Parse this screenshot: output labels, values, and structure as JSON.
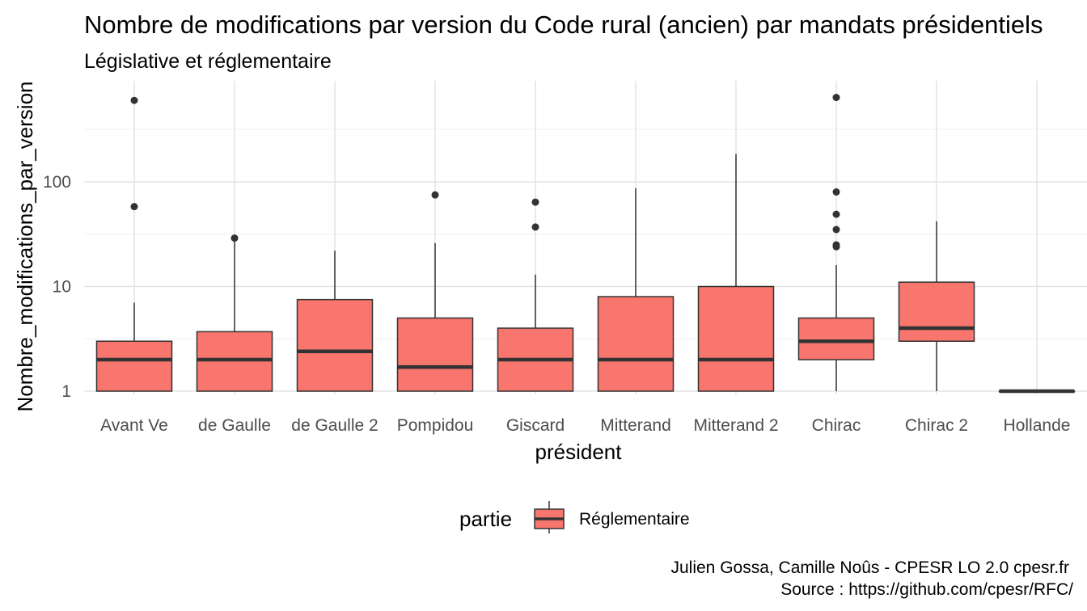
{
  "chart_data": {
    "type": "boxplot",
    "title": "Nombre de modifications par version du Code rural (ancien) par mandats présidentiels",
    "subtitle": "Législative et réglementaire",
    "xlabel": "président",
    "ylabel": "Nombre_modifications_par_version",
    "y_scale": "log10",
    "ylim": [
      0.9,
      750
    ],
    "y_ticks": [
      1,
      10,
      100
    ],
    "y_tick_labels": [
      "1",
      "10",
      "100"
    ],
    "grid": true,
    "legend": {
      "title": "partie",
      "position": "bottom",
      "entries": [
        "Réglementaire"
      ]
    },
    "fill_color": "#F8766D",
    "categories": [
      "Avant Ve",
      "de Gaulle",
      "de Gaulle 2",
      "Pompidou",
      "Giscard",
      "Mitterand",
      "Mitterand 2",
      "Chirac",
      "Chirac 2",
      "Hollande"
    ],
    "series": [
      {
        "name": "Réglementaire",
        "boxes": [
          {
            "category": "Avant Ve",
            "min": 1,
            "q1": 1,
            "median": 2,
            "q3": 3,
            "max": 7,
            "outliers": [
              58,
              600
            ]
          },
          {
            "category": "de Gaulle",
            "min": 1,
            "q1": 1,
            "median": 2,
            "q3": 3.7,
            "max": 28,
            "outliers": [
              29
            ]
          },
          {
            "category": "de Gaulle 2",
            "min": 1,
            "q1": 1,
            "median": 2.4,
            "q3": 7.5,
            "max": 22,
            "outliers": []
          },
          {
            "category": "Pompidou",
            "min": 1,
            "q1": 1,
            "median": 1.7,
            "q3": 5,
            "max": 26,
            "outliers": [
              75
            ]
          },
          {
            "category": "Giscard",
            "min": 1,
            "q1": 1,
            "median": 2,
            "q3": 4,
            "max": 13,
            "outliers": [
              37,
              64
            ]
          },
          {
            "category": "Mitterand",
            "min": 1,
            "q1": 1,
            "median": 2,
            "q3": 8,
            "max": 87,
            "outliers": []
          },
          {
            "category": "Mitterand 2",
            "min": 1,
            "q1": 1,
            "median": 2,
            "q3": 10,
            "max": 185,
            "outliers": []
          },
          {
            "category": "Chirac",
            "min": 1,
            "q1": 2,
            "median": 3,
            "q3": 5,
            "max": 16,
            "outliers": [
              24,
              25,
              35,
              49,
              80,
              640
            ]
          },
          {
            "category": "Chirac 2",
            "min": 1,
            "q1": 3,
            "median": 4,
            "q3": 11,
            "max": 42,
            "outliers": []
          },
          {
            "category": "Hollande",
            "min": 1,
            "q1": 1,
            "median": 1,
            "q3": 1,
            "max": 1,
            "outliers": []
          }
        ]
      }
    ],
    "caption": [
      "Julien Gossa, Camille Noûs - CPESR LO 2.0 cpesr.fr",
      "Source : https://github.com/cpesr/RFC/"
    ]
  }
}
